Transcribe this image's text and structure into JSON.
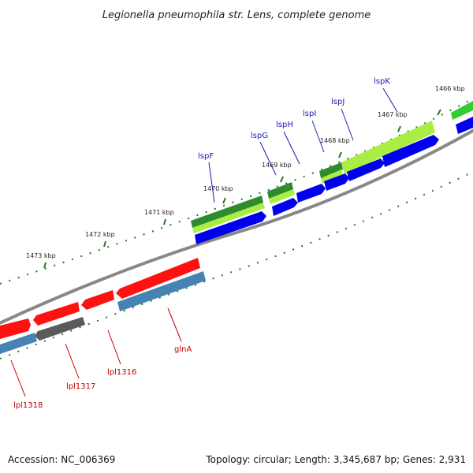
{
  "title": "Legionella pneumophila str. Lens, complete genome",
  "accession_text": "Accession: NC_006369",
  "summary_text": "Topology: circular; Length: 3,345,687 bp; Genes: 2,931",
  "tick_labels": [
    "1466 kbp",
    "1467 kbp",
    "1468 kbp",
    "1469 kbp",
    "1470 kbp",
    "1471 kbp",
    "1472 kbp",
    "1473 kbp"
  ],
  "gene_labels_top": [
    "lspK",
    "lspJ",
    "lspI",
    "lspH",
    "lspG",
    "lspF"
  ],
  "gene_labels_bottom": [
    "glnA",
    "lpl1316",
    "lpl1317",
    "lpl1318"
  ],
  "colors": {
    "forward_cds": "#0000ee",
    "reverse_cds": "#ff1111",
    "rna_green": "#33aa33",
    "light_green": "#aaee44",
    "steelblue": "#4682b4",
    "gray_gene": "#666666",
    "backbone": "#888888",
    "tick": "#227722"
  }
}
